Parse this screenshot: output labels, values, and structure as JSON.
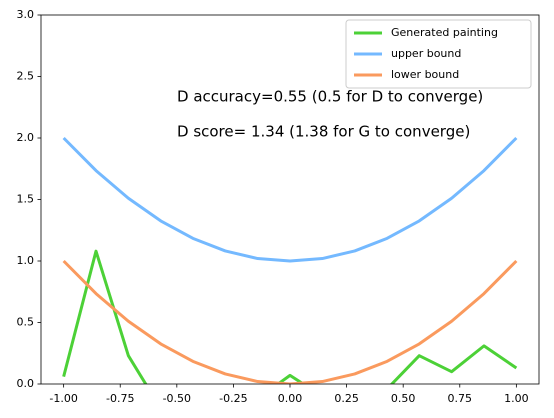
{
  "chart_data": {
    "type": "line",
    "x": [
      -1,
      -0.857,
      -0.714,
      -0.571,
      -0.429,
      -0.286,
      -0.143,
      0,
      0.143,
      0.286,
      0.429,
      0.571,
      0.714,
      0.857,
      1
    ],
    "series": [
      {
        "name": "Generated painting",
        "color": "#4cd137",
        "values": [
          0.06,
          1.08,
          0.23,
          -0.2,
          -0.35,
          -0.25,
          -0.12,
          0.07,
          -0.1,
          -0.3,
          -0.04,
          0.23,
          0.1,
          0.31,
          0.13
        ]
      },
      {
        "name": "upper bound",
        "color": "#74b9ff",
        "values": [
          2,
          1.735,
          1.51,
          1.326,
          1.184,
          1.082,
          1.02,
          1,
          1.02,
          1.082,
          1.184,
          1.326,
          1.51,
          1.735,
          2
        ]
      },
      {
        "name": "lower bound",
        "color": "#fa9a5e",
        "values": [
          1,
          0.735,
          0.51,
          0.326,
          0.184,
          0.082,
          0.02,
          0,
          0.02,
          0.082,
          0.184,
          0.326,
          0.51,
          0.735,
          1
        ]
      }
    ],
    "annotations": [
      "D accuracy=0.55 (0.5 for D to converge)",
      "D score= 1.34 (1.38 for G to converge)"
    ],
    "xlim": [
      -1.1,
      1.1
    ],
    "xticks": [
      {
        "value": -1,
        "label": "-1.00"
      },
      {
        "value": -0.75,
        "label": "-0.75"
      },
      {
        "value": -0.5,
        "label": "-0.50"
      },
      {
        "value": -0.25,
        "label": "-0.25"
      },
      {
        "value": 0,
        "label": "0.00"
      },
      {
        "value": 0.25,
        "label": "0.25"
      },
      {
        "value": 0.5,
        "label": "0.50"
      },
      {
        "value": 0.75,
        "label": "0.75"
      },
      {
        "value": 1,
        "label": "1.00"
      }
    ],
    "ylim": [
      0,
      3
    ],
    "yticks": [
      {
        "value": 0,
        "label": "0.0"
      },
      {
        "value": 0.5,
        "label": "0.5"
      },
      {
        "value": 1,
        "label": "1.0"
      },
      {
        "value": 1.5,
        "label": "1.5"
      },
      {
        "value": 2,
        "label": "2.0"
      },
      {
        "value": 2.5,
        "label": "2.5"
      },
      {
        "value": 3,
        "label": "3.0"
      }
    ],
    "legend": "upper right"
  }
}
